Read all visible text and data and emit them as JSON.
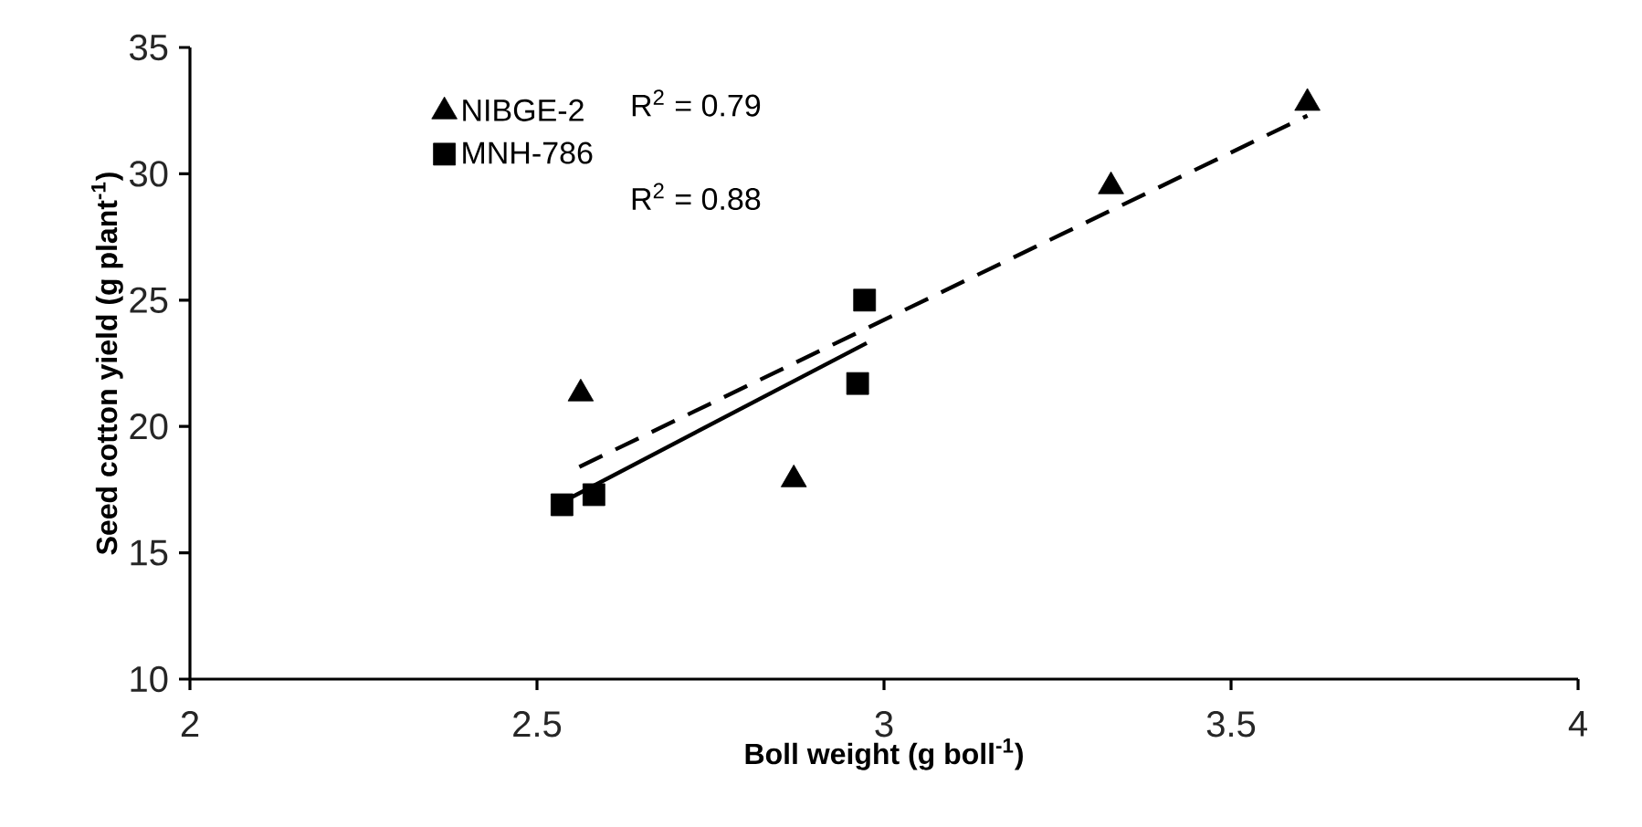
{
  "chart_data": {
    "type": "scatter",
    "xlabel": "Boll weight (g boll$^{-1}$)",
    "ylabel": "Seed cotton yield (g plant$^{-1}$)",
    "xlim": [
      2,
      4
    ],
    "ylim": [
      10,
      35
    ],
    "xticks": [
      2,
      2.5,
      3,
      3.5,
      4
    ],
    "yticks": [
      10,
      15,
      20,
      25,
      30,
      35
    ],
    "legend": "top left",
    "annotations": [
      "R$^{2}$ = 0.79",
      "R$^{2}$ = 0.88"
    ],
    "series": [
      {
        "name": "NIBGE-2",
        "marker": "triangle",
        "color": "#000000",
        "x": [
          2.563,
          2.87,
          3.327,
          3.61
        ],
        "values": [
          21.3,
          17.9,
          29.5,
          32.8
        ]
      },
      {
        "name": "MNH-786",
        "marker": "square",
        "color": "#000000",
        "x": [
          2.536,
          2.582,
          2.962,
          2.972
        ],
        "values": [
          16.9,
          17.3,
          21.7,
          25.0
        ]
      },
      {
        "type": "line",
        "line_style": "dashed",
        "color": "#000000",
        "x": [
          2.561,
          3.61
        ],
        "values": [
          18.4,
          32.3
        ]
      },
      {
        "type": "line",
        "line_style": "solid",
        "color": "#000000",
        "x": [
          2.536,
          2.975
        ],
        "values": [
          17.0,
          23.3
        ]
      }
    ]
  }
}
